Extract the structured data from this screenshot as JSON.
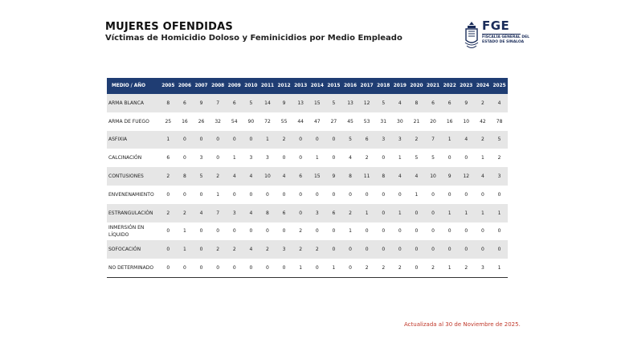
{
  "header": {
    "title": "MUJERES OFENDIDAS",
    "subtitle": "Víctimas de Homicidio Doloso y Feminicidios por Medio Empleado"
  },
  "logo": {
    "acronym": "FGE",
    "line1": "FISCALÍA GENERAL DEL",
    "line2": "ESTADO DE SINALOA"
  },
  "table": {
    "corner": "MEDIO  /  AÑO",
    "years": [
      "2005",
      "2006",
      "2007",
      "2008",
      "2009",
      "2010",
      "2011",
      "2012",
      "2013",
      "2014",
      "2015",
      "2016",
      "2017",
      "2018",
      "2019",
      "2020",
      "2021",
      "2022",
      "2023",
      "2024",
      "2025"
    ],
    "rows": [
      {
        "label": "ARMA BLANCA",
        "values": [
          "8",
          "6",
          "9",
          "7",
          "6",
          "5",
          "14",
          "9",
          "13",
          "15",
          "5",
          "13",
          "12",
          "5",
          "4",
          "8",
          "6",
          "6",
          "9",
          "2",
          "4"
        ]
      },
      {
        "label": "ARMA DE FUEGO",
        "values": [
          "25",
          "16",
          "26",
          "32",
          "54",
          "90",
          "72",
          "55",
          "44",
          "47",
          "27",
          "45",
          "53",
          "31",
          "30",
          "21",
          "20",
          "16",
          "10",
          "42",
          "78"
        ]
      },
      {
        "label": "ASFIXIA",
        "values": [
          "1",
          "0",
          "0",
          "0",
          "0",
          "0",
          "1",
          "2",
          "0",
          "0",
          "0",
          "5",
          "6",
          "3",
          "3",
          "2",
          "7",
          "1",
          "4",
          "2",
          "5"
        ]
      },
      {
        "label": "CALCINACIÓN",
        "values": [
          "6",
          "0",
          "3",
          "0",
          "1",
          "3",
          "3",
          "0",
          "0",
          "1",
          "0",
          "4",
          "2",
          "0",
          "1",
          "5",
          "5",
          "0",
          "0",
          "1",
          "2"
        ]
      },
      {
        "label": "CONTUSIONES",
        "values": [
          "2",
          "8",
          "5",
          "2",
          "4",
          "4",
          "10",
          "4",
          "6",
          "15",
          "9",
          "8",
          "11",
          "8",
          "4",
          "4",
          "10",
          "9",
          "12",
          "4",
          "3"
        ]
      },
      {
        "label": "ENVENENAMIENTO",
        "values": [
          "0",
          "0",
          "0",
          "1",
          "0",
          "0",
          "0",
          "0",
          "0",
          "0",
          "0",
          "0",
          "0",
          "0",
          "0",
          "1",
          "0",
          "0",
          "0",
          "0",
          "0"
        ]
      },
      {
        "label": "ESTRANGULACIÓN",
        "values": [
          "2",
          "2",
          "4",
          "7",
          "3",
          "4",
          "8",
          "6",
          "0",
          "3",
          "6",
          "2",
          "1",
          "0",
          "1",
          "0",
          "0",
          "1",
          "1",
          "1",
          "1"
        ]
      },
      {
        "label": "INMERSIÓN EN LÍQUIDO",
        "values": [
          "0",
          "1",
          "0",
          "0",
          "0",
          "0",
          "0",
          "0",
          "2",
          "0",
          "0",
          "1",
          "0",
          "0",
          "0",
          "0",
          "0",
          "0",
          "0",
          "0",
          "0"
        ]
      },
      {
        "label": "SOFOCACIÓN",
        "values": [
          "0",
          "1",
          "0",
          "2",
          "2",
          "4",
          "2",
          "3",
          "2",
          "2",
          "0",
          "0",
          "0",
          "0",
          "0",
          "0",
          "0",
          "0",
          "0",
          "0",
          "0"
        ]
      },
      {
        "label": "NO DETERMINADO",
        "values": [
          "0",
          "0",
          "0",
          "0",
          "0",
          "0",
          "0",
          "0",
          "1",
          "0",
          "1",
          "0",
          "2",
          "2",
          "2",
          "0",
          "2",
          "1",
          "2",
          "3",
          "1"
        ]
      }
    ]
  },
  "footer": {
    "updated": "Actualizada al 30 de Noviembre de 2025."
  }
}
